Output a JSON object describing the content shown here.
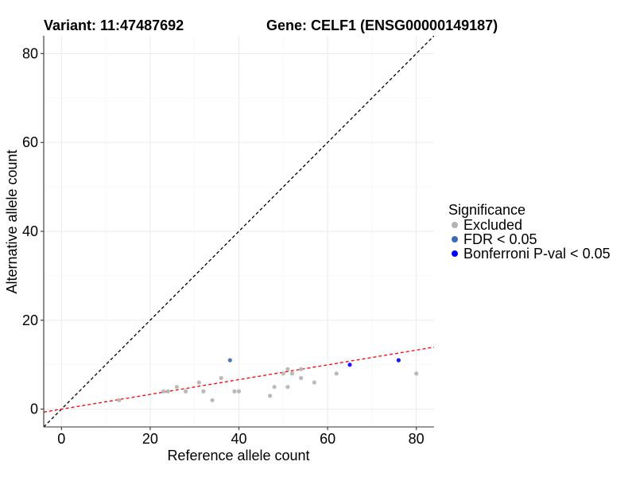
{
  "header": {
    "variant_title": "Variant: 11:47487692",
    "gene_title": "Gene: CELF1 (ENSG00000149187)"
  },
  "chart_data": {
    "type": "scatter",
    "title": "Variant: 11:47487692",
    "subtitle": "Gene: CELF1 (ENSG00000149187)",
    "xlabel": "Reference allele count",
    "ylabel": "Alternative allele count",
    "xlim": [
      -4,
      84
    ],
    "ylim": [
      -4,
      84
    ],
    "xticks": [
      0,
      20,
      40,
      60,
      80
    ],
    "yticks": [
      0,
      20,
      40,
      60,
      80
    ],
    "grid": true,
    "legend": {
      "title": "Significance",
      "placement": "right",
      "entries": [
        {
          "label": "Excluded",
          "color": "#b3b3b3"
        },
        {
          "label": "FDR < 0.05",
          "color": "#3a6bb5"
        },
        {
          "label": "Bonferroni P-val < 0.05",
          "color": "#0000ff"
        }
      ]
    },
    "reference_lines": [
      {
        "name": "identity",
        "slope": 1,
        "intercept": 0,
        "color": "#000000",
        "dash": true
      },
      {
        "name": "fit",
        "slope": 0.166,
        "intercept": 0.0,
        "color": "#ff0000",
        "dash": true
      }
    ],
    "series": [
      {
        "name": "Excluded",
        "color": "#b3b3b3",
        "points": [
          [
            13,
            2
          ],
          [
            23,
            4
          ],
          [
            24,
            4
          ],
          [
            26,
            5
          ],
          [
            28,
            4
          ],
          [
            31,
            6
          ],
          [
            32,
            4
          ],
          [
            34,
            2
          ],
          [
            36,
            7
          ],
          [
            39,
            4
          ],
          [
            40,
            4
          ],
          [
            47,
            3
          ],
          [
            48,
            5
          ],
          [
            50,
            8
          ],
          [
            51,
            9
          ],
          [
            51,
            5
          ],
          [
            52,
            8
          ],
          [
            54,
            9
          ],
          [
            54,
            7
          ],
          [
            57,
            6
          ],
          [
            62,
            8
          ],
          [
            80,
            8
          ]
        ]
      },
      {
        "name": "FDR < 0.05",
        "color": "#3a6bb5",
        "points": [
          [
            38,
            11
          ]
        ]
      },
      {
        "name": "Bonferroni P-val < 0.05",
        "color": "#0000ff",
        "points": [
          [
            65,
            10
          ],
          [
            76,
            11
          ]
        ]
      }
    ]
  }
}
